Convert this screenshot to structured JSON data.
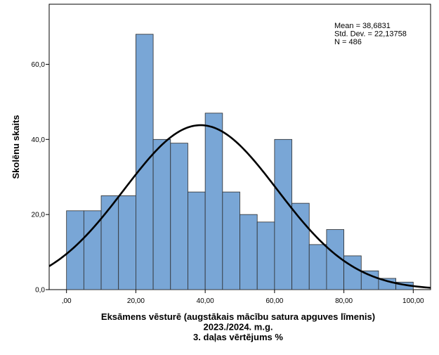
{
  "chart_data": {
    "type": "bar",
    "title": "",
    "xlabel_lines": [
      "Eksāmens vēsturē (augstākais mācību satura apguves līmenis)",
      "2023./2024. m.g.",
      "3. daļas vērtējums %"
    ],
    "ylabel": "Skolēnu skaits",
    "xlim": [
      -5,
      105
    ],
    "ylim": [
      0,
      76
    ],
    "x_ticks": [
      0,
      20,
      40,
      60,
      80,
      100
    ],
    "x_tick_labels": [
      ",00",
      "20,00",
      "40,00",
      "60,00",
      "80,00",
      "100,00"
    ],
    "y_ticks": [
      0,
      20,
      40,
      60
    ],
    "y_tick_labels": [
      "0,0",
      "20,0",
      "40,0",
      "60,0"
    ],
    "bins": [
      {
        "x0": 0,
        "x1": 5,
        "count": 21
      },
      {
        "x0": 5,
        "x1": 10,
        "count": 21
      },
      {
        "x0": 10,
        "x1": 15,
        "count": 25
      },
      {
        "x0": 15,
        "x1": 20,
        "count": 25
      },
      {
        "x0": 20,
        "x1": 25,
        "count": 68
      },
      {
        "x0": 25,
        "x1": 30,
        "count": 40
      },
      {
        "x0": 30,
        "x1": 35,
        "count": 39
      },
      {
        "x0": 35,
        "x1": 40,
        "count": 26
      },
      {
        "x0": 40,
        "x1": 45,
        "count": 47
      },
      {
        "x0": 45,
        "x1": 50,
        "count": 26
      },
      {
        "x0": 50,
        "x1": 55,
        "count": 20
      },
      {
        "x0": 55,
        "x1": 60,
        "count": 18
      },
      {
        "x0": 60,
        "x1": 65,
        "count": 40
      },
      {
        "x0": 65,
        "x1": 70,
        "count": 23
      },
      {
        "x0": 70,
        "x1": 75,
        "count": 12
      },
      {
        "x0": 75,
        "x1": 80,
        "count": 16
      },
      {
        "x0": 80,
        "x1": 85,
        "count": 9
      },
      {
        "x0": 85,
        "x1": 90,
        "count": 5
      },
      {
        "x0": 90,
        "x1": 95,
        "count": 3
      },
      {
        "x0": 95,
        "x1": 100,
        "count": 2
      }
    ],
    "normal_curve": {
      "mean": 38.6831,
      "std": 22.13758,
      "n": 486,
      "bin_width": 5
    },
    "stats_lines": [
      "Mean = 38,6831",
      "Std. Dev. = 22,13758",
      "N = 486"
    ],
    "legend_position": "top-right",
    "grid": false,
    "colors": {
      "bar_fill": "#79a6d6",
      "bar_stroke": "#2c2c2c",
      "curve": "#000000",
      "axis": "#000000"
    }
  }
}
